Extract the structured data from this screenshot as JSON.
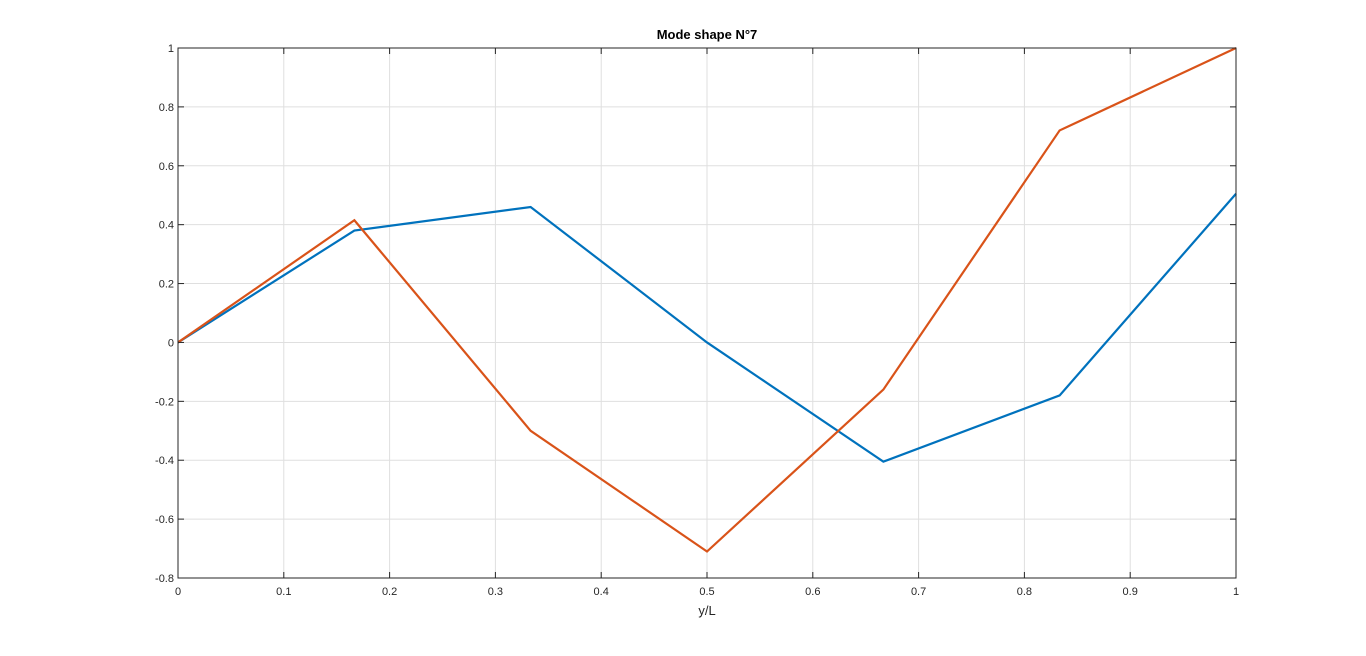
{
  "chart_data": {
    "type": "line",
    "title": "Mode shape N°7",
    "xlabel": "y/L",
    "ylabel": "",
    "xlim": [
      0,
      1
    ],
    "ylim": [
      -0.8,
      1
    ],
    "xticks": [
      0,
      0.1,
      0.2,
      0.3,
      0.4,
      0.5,
      0.6,
      0.7,
      0.8,
      0.9,
      1
    ],
    "xtick_labels": [
      "0",
      "0.1",
      "0.2",
      "0.3",
      "0.4",
      "0.5",
      "0.6",
      "0.7",
      "0.8",
      "0.9",
      "1"
    ],
    "yticks": [
      -0.8,
      -0.6,
      -0.4,
      -0.2,
      0,
      0.2,
      0.4,
      0.6,
      0.8,
      1
    ],
    "ytick_labels": [
      "-0.8",
      "-0.6",
      "-0.4",
      "-0.2",
      "0",
      "0.2",
      "0.4",
      "0.6",
      "0.8",
      "1"
    ],
    "grid": true,
    "x": [
      0,
      0.1667,
      0.3333,
      0.5,
      0.6667,
      0.8333,
      1
    ],
    "series": [
      {
        "values": [
          0,
          0.38,
          0.46,
          0,
          -0.405,
          -0.18,
          0.505
        ],
        "color": "#0072BD"
      },
      {
        "values": [
          0,
          0.415,
          -0.3,
          -0.71,
          -0.16,
          0.72,
          1
        ],
        "color": "#D95319"
      }
    ]
  }
}
